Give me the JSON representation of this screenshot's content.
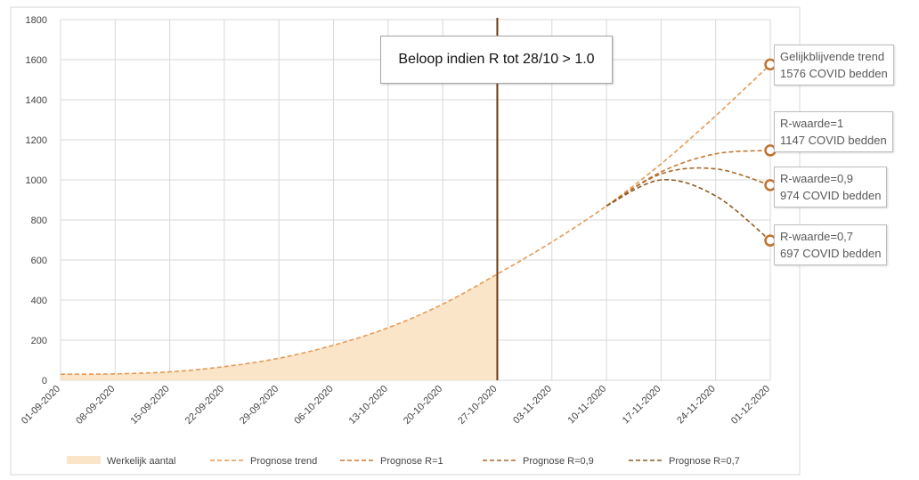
{
  "chart_data": {
    "type": "area",
    "x": [
      "01-09-2020",
      "08-09-2020",
      "15-09-2020",
      "22-09-2020",
      "29-09-2020",
      "06-10-2020",
      "13-10-2020",
      "20-10-2020",
      "27-10-2020",
      "03-11-2020",
      "10-11-2020",
      "17-11-2020",
      "24-11-2020",
      "01-12-2020"
    ],
    "ylim": [
      0,
      1800
    ],
    "yticks": [
      0,
      200,
      400,
      600,
      800,
      1000,
      1200,
      1400,
      1600,
      1800
    ],
    "grid": true,
    "series": [
      {
        "name": "Werkelijk aantal",
        "kind": "area",
        "color": "#fbe5c8",
        "points": [
          [
            "01-09-2020",
            30
          ],
          [
            "08-09-2020",
            32
          ],
          [
            "15-09-2020",
            42
          ],
          [
            "22-09-2020",
            68
          ],
          [
            "29-09-2020",
            110
          ],
          [
            "06-10-2020",
            175
          ],
          [
            "13-10-2020",
            262
          ],
          [
            "20-10-2020",
            380
          ],
          [
            "27-10-2020",
            530
          ]
        ]
      },
      {
        "name": "Prognose trend",
        "kind": "dashed",
        "color": "#e59a55",
        "points": [
          [
            "01-09-2020",
            30
          ],
          [
            "08-09-2020",
            32
          ],
          [
            "15-09-2020",
            42
          ],
          [
            "22-09-2020",
            68
          ],
          [
            "29-09-2020",
            110
          ],
          [
            "06-10-2020",
            175
          ],
          [
            "13-10-2020",
            262
          ],
          [
            "20-10-2020",
            380
          ],
          [
            "27-10-2020",
            530
          ],
          [
            "03-11-2020",
            690
          ],
          [
            "10-11-2020",
            870
          ],
          [
            "17-11-2020",
            1080
          ],
          [
            "24-11-2020",
            1320
          ],
          [
            "01-12-2020",
            1576
          ]
        ]
      },
      {
        "name": "Prognose R=1",
        "kind": "dashed",
        "color": "#c87a35",
        "points": [
          [
            "10-11-2020",
            870
          ],
          [
            "17-11-2020",
            1040
          ],
          [
            "24-11-2020",
            1130
          ],
          [
            "01-12-2020",
            1147
          ]
        ]
      },
      {
        "name": "Prognose R=0,9",
        "kind": "dashed",
        "color": "#a8692b",
        "points": [
          [
            "10-11-2020",
            870
          ],
          [
            "17-11-2020",
            1030
          ],
          [
            "24-11-2020",
            1055
          ],
          [
            "01-12-2020",
            974
          ]
        ]
      },
      {
        "name": "Prognose R=0,7",
        "kind": "dashed",
        "color": "#8f5a22",
        "points": [
          [
            "10-11-2020",
            870
          ],
          [
            "17-11-2020",
            1000
          ],
          [
            "24-11-2020",
            920
          ],
          [
            "01-12-2020",
            697
          ]
        ]
      }
    ],
    "end_markers": [
      {
        "series": "Prognose trend",
        "date": "01-12-2020",
        "value": 1576
      },
      {
        "series": "Prognose R=1",
        "date": "01-12-2020",
        "value": 1147
      },
      {
        "series": "Prognose R=0,9",
        "date": "01-12-2020",
        "value": 974
      },
      {
        "series": "Prognose R=0,7",
        "date": "01-12-2020",
        "value": 697
      }
    ],
    "marker_color": "#c0732f",
    "vertical_line": {
      "date": "27-10-2020",
      "color": "#6b3a10"
    },
    "legend_placement": "bottom",
    "annotations": [
      {
        "line1": "Gelijkblijvende trend",
        "line2": "1576 COVID bedden"
      },
      {
        "line1": "R-waarde=1",
        "line2": "1147 COVID bedden"
      },
      {
        "line1": "R-waarde=0,9",
        "line2": "974 COVID bedden"
      },
      {
        "line1": "R-waarde=0,7",
        "line2": "697 COVID bedden"
      }
    ],
    "scenario_label": "Beloop indien R tot 28/10 > 1.0"
  }
}
